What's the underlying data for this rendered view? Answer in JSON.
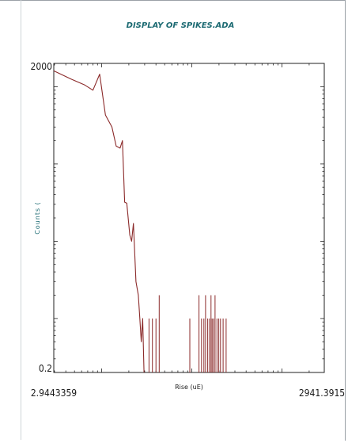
{
  "chart_data": {
    "type": "line",
    "title": "DISPLAY OF SPIKES.ADA",
    "xlabel": "Rise (uE)",
    "ylabel": "Counts (",
    "xscale": "log",
    "yscale": "log",
    "xlim": [
      2.9443359,
      2941.3915
    ],
    "ylim": [
      0.2,
      2000
    ],
    "x_tick_labels": [
      "2.9443359",
      "2941.3915"
    ],
    "y_tick_labels": [
      "2000",
      "0.2"
    ],
    "line_color": "#8b2a2a",
    "series": [
      {
        "points": [
          [
            2.9443359,
            1600
          ],
          [
            4.6,
            1250
          ],
          [
            6.5,
            1050
          ],
          [
            8.0,
            900
          ],
          [
            9.5,
            1450
          ],
          [
            11.0,
            430
          ],
          [
            13.0,
            300
          ],
          [
            14.5,
            170
          ],
          [
            16.0,
            160
          ],
          [
            17.0,
            200
          ],
          [
            18.0,
            32
          ],
          [
            19.0,
            31
          ],
          [
            20.5,
            12
          ],
          [
            21.5,
            10
          ],
          [
            22.5,
            17
          ],
          [
            24.0,
            3
          ],
          [
            25.5,
            2
          ],
          [
            26.5,
            1
          ],
          [
            27.5,
            0.5
          ],
          [
            28.5,
            1
          ],
          [
            29.5,
            0.2
          ]
        ]
      }
    ],
    "spikes": {
      "baseline": 0.2,
      "items": [
        [
          33.5,
          1
        ],
        [
          36.5,
          1
        ],
        [
          40.0,
          1
        ],
        [
          43.5,
          2
        ],
        [
          95.0,
          1
        ],
        [
          120.0,
          2
        ],
        [
          128.0,
          1
        ],
        [
          136.0,
          1
        ],
        [
          142.0,
          2
        ],
        [
          150.0,
          1
        ],
        [
          157.0,
          1
        ],
        [
          163.0,
          2
        ],
        [
          168.0,
          1
        ],
        [
          174.0,
          1
        ],
        [
          181.0,
          2
        ],
        [
          190.0,
          1
        ],
        [
          199.0,
          1
        ],
        [
          208.0,
          1
        ],
        [
          222.0,
          1
        ],
        [
          240.0,
          1
        ]
      ]
    }
  }
}
